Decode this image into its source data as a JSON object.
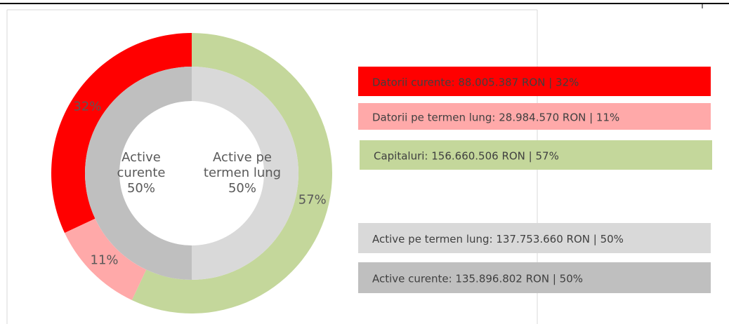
{
  "chart_data": {
    "type": "donut",
    "rings": [
      {
        "categories": [
          "Datorii curente",
          "Datorii pe termen lung",
          "Capitaluri"
        ],
        "colors": [
          "#ff0000",
          "#ffa9a9",
          "#c4d79b"
        ],
        "values": [
          32,
          11,
          57
        ],
        "value_labels": [
          "32%",
          "11%",
          "57%"
        ],
        "legend": [
          "Datorii curente: 88.005.387 RON | 32%",
          "Datorii pe termen lung: 28.984.570 RON | 11%",
          "Capitaluri: 156.660.506 RON | 57%"
        ]
      },
      {
        "categories": [
          "Active curente",
          "Active pe termen lung"
        ],
        "colors": [
          "#bfbfbf",
          "#d9d9d9"
        ],
        "values": [
          50,
          50
        ],
        "value_labels": [
          "50%",
          "50%"
        ],
        "legend": [
          "Active curente: 135.896.802 RON | 50%",
          "Active pe termen lung: 137.753.660 RON | 50%"
        ]
      }
    ]
  }
}
